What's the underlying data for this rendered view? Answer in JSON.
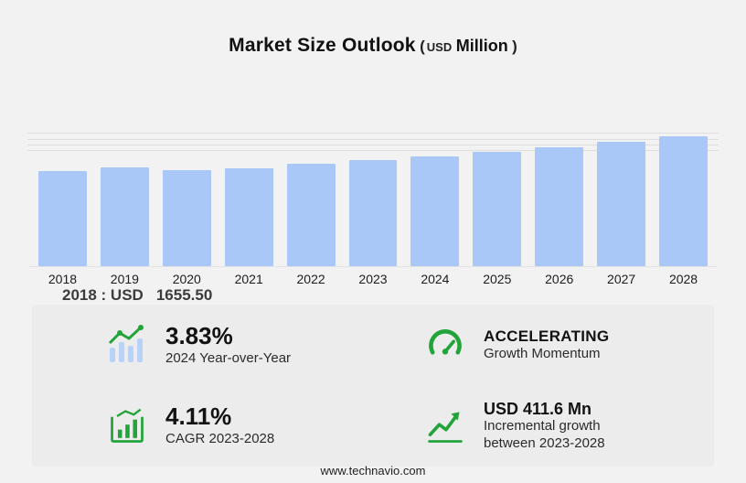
{
  "page": {
    "background": "#f2f2f2",
    "footer": "www.technavio.com"
  },
  "title": {
    "main": "Market Size Outlook",
    "paren_open": "(",
    "currency": "USD",
    "unit": "Million",
    "paren_close": ")"
  },
  "chart_data": {
    "type": "bar",
    "title": "Market Size Outlook (USD Million)",
    "xlabel": "",
    "ylabel": "",
    "categories": [
      "2018",
      "2019",
      "2020",
      "2021",
      "2022",
      "2023",
      "2024",
      "2025",
      "2026",
      "2027",
      "2028"
    ],
    "values": [
      1655.5,
      1720,
      1675,
      1705,
      1785,
      1843,
      1914,
      1990,
      2068,
      2160,
      2255
    ],
    "ylim": [
      0,
      2400
    ],
    "gridline_values": [
      2000,
      2100,
      2200,
      2300
    ],
    "bar_color": "#a9c7f7",
    "legend": "none",
    "grid": "horizontal-top"
  },
  "tooltip": {
    "label": "2018 : USD",
    "value": "1655.50"
  },
  "stats": [
    {
      "id": "yoy",
      "icon": "bar-trend-icon",
      "value": "3.83%",
      "label": "2024 Year-over-Year"
    },
    {
      "id": "momentum",
      "icon": "gauge-icon",
      "value": "ACCELERATING",
      "label": "Growth Momentum"
    },
    {
      "id": "cagr",
      "icon": "cagr-bars-icon",
      "value": "4.11%",
      "label": "CAGR 2023-2028"
    },
    {
      "id": "incremental",
      "icon": "growth-arrow-icon",
      "value": "USD 411.6 Mn",
      "label": "Incremental growth between 2023-2028"
    }
  ],
  "colors": {
    "accent_green": "#23a43b",
    "icon_bar_blue": "#b9d3f8"
  }
}
